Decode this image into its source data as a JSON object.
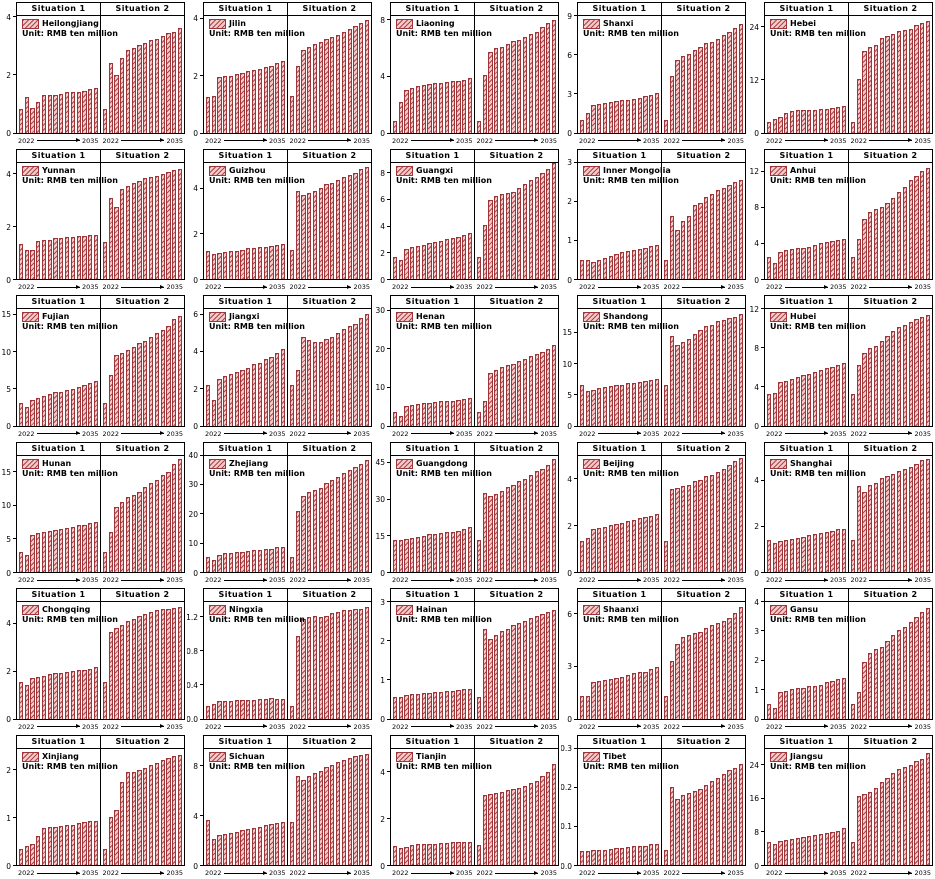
{
  "panels": [
    "Situation 1",
    "Situation 2"
  ],
  "unit_label": "Unit: RMB ten million",
  "x_axis": {
    "start": "2022",
    "end": "2035"
  },
  "colors": {
    "bar_fill": "#f5c9c9",
    "bar_hatch": "#a8484c",
    "bar_edge": "#9e3539",
    "axis": "#000000",
    "background": "#ffffff"
  },
  "chart_data": [
    {
      "type": "bar",
      "name": "Heilongjiang",
      "ylim": 4.05,
      "yticks": [
        0,
        2,
        4
      ],
      "situation1": [
        0.8,
        1.25,
        0.85,
        1.05,
        1.3,
        1.3,
        1.3,
        1.35,
        1.4,
        1.4,
        1.4,
        1.45,
        1.5,
        1.55
      ],
      "situation2": [
        0.8,
        2.4,
        2.0,
        2.6,
        2.85,
        2.95,
        3.05,
        3.1,
        3.2,
        3.25,
        3.35,
        3.45,
        3.5,
        3.65
      ]
    },
    {
      "type": "bar",
      "name": "Jilin",
      "ylim": 4.1,
      "yticks": [
        0,
        2,
        4
      ],
      "situation1": [
        1.25,
        1.3,
        1.95,
        2.0,
        2.0,
        2.05,
        2.1,
        2.15,
        2.2,
        2.25,
        2.3,
        2.35,
        2.45,
        2.5
      ],
      "situation2": [
        1.3,
        2.35,
        2.9,
        3.0,
        3.1,
        3.2,
        3.3,
        3.35,
        3.45,
        3.55,
        3.65,
        3.75,
        3.85,
        3.95
      ]
    },
    {
      "type": "bar",
      "name": "Liaoning",
      "ylim": 8.3,
      "yticks": [
        0,
        4,
        8
      ],
      "situation1": [
        0.8,
        2.2,
        3.0,
        3.2,
        3.3,
        3.4,
        3.45,
        3.5,
        3.55,
        3.6,
        3.65,
        3.7,
        3.75,
        3.85
      ],
      "situation2": [
        0.8,
        4.1,
        5.7,
        6.0,
        6.1,
        6.3,
        6.5,
        6.6,
        6.8,
        7.0,
        7.2,
        7.5,
        7.8,
        8.05
      ]
    },
    {
      "type": "bar",
      "name": "Shanxi",
      "ylim": 9.0,
      "yticks": [
        0,
        3,
        6,
        9
      ],
      "situation1": [
        1.0,
        1.5,
        2.1,
        2.2,
        2.3,
        2.35,
        2.4,
        2.5,
        2.55,
        2.6,
        2.7,
        2.8,
        2.9,
        3.05
      ],
      "situation2": [
        1.0,
        4.4,
        5.6,
        5.9,
        6.1,
        6.4,
        6.6,
        6.9,
        7.0,
        7.2,
        7.5,
        7.8,
        8.1,
        8.4
      ]
    },
    {
      "type": "bar",
      "name": "Hebei",
      "ylim": 26.5,
      "yticks": [
        0,
        12,
        24
      ],
      "situation1": [
        2.5,
        3.0,
        3.6,
        4.5,
        4.8,
        5.0,
        5.0,
        5.1,
        5.2,
        5.3,
        5.4,
        5.5,
        5.8,
        6.0
      ],
      "situation2": [
        2.5,
        12.2,
        18.5,
        19.5,
        20.0,
        21.5,
        22.0,
        22.5,
        23.0,
        23.3,
        23.5,
        24.5,
        25.0,
        25.3
      ]
    },
    {
      "type": "bar",
      "name": "Yunnan",
      "ylim": 4.45,
      "yticks": [
        0,
        2,
        4
      ],
      "situation1": [
        1.35,
        1.1,
        1.1,
        1.45,
        1.5,
        1.5,
        1.55,
        1.55,
        1.6,
        1.6,
        1.65,
        1.65,
        1.7,
        1.7
      ],
      "situation2": [
        1.4,
        3.1,
        2.75,
        3.45,
        3.55,
        3.65,
        3.75,
        3.85,
        3.9,
        3.95,
        4.0,
        4.1,
        4.15,
        4.2
      ]
    },
    {
      "type": "bar",
      "name": "Guizhou",
      "ylim": 5.15,
      "yticks": [
        0,
        2,
        4
      ],
      "situation1": [
        1.25,
        1.1,
        1.15,
        1.2,
        1.25,
        1.25,
        1.3,
        1.35,
        1.35,
        1.4,
        1.4,
        1.45,
        1.5,
        1.55
      ],
      "situation2": [
        1.3,
        3.9,
        3.7,
        3.8,
        3.9,
        4.0,
        4.2,
        4.25,
        4.4,
        4.5,
        4.6,
        4.7,
        4.85,
        4.95
      ]
    },
    {
      "type": "bar",
      "name": "Guangxi",
      "ylim": 8.8,
      "yticks": [
        0,
        2,
        4,
        6,
        8
      ],
      "situation1": [
        1.7,
        1.4,
        2.3,
        2.4,
        2.5,
        2.6,
        2.7,
        2.8,
        2.9,
        3.0,
        3.1,
        3.2,
        3.3,
        3.45
      ],
      "situation2": [
        1.7,
        4.1,
        6.0,
        6.3,
        6.4,
        6.5,
        6.6,
        6.9,
        7.2,
        7.5,
        7.7,
        8.0,
        8.3,
        8.75
      ]
    },
    {
      "type": "bar",
      "name": "Inner Mongolia",
      "ylim": 3.0,
      "yticks": [
        0,
        1,
        2,
        3
      ],
      "situation1": [
        0.5,
        0.5,
        0.45,
        0.5,
        0.55,
        0.6,
        0.65,
        0.7,
        0.72,
        0.75,
        0.78,
        0.8,
        0.85,
        0.88
      ],
      "situation2": [
        0.5,
        1.62,
        1.25,
        1.5,
        1.62,
        1.9,
        1.95,
        2.1,
        2.2,
        2.3,
        2.35,
        2.42,
        2.5,
        2.55
      ]
    },
    {
      "type": "bar",
      "name": "Anhui",
      "ylim": 13.0,
      "yticks": [
        0,
        4,
        8,
        12
      ],
      "situation1": [
        2.5,
        1.8,
        3.0,
        3.2,
        3.3,
        3.4,
        3.5,
        3.6,
        3.8,
        4.0,
        4.1,
        4.2,
        4.4,
        4.5
      ],
      "situation2": [
        2.5,
        4.5,
        6.7,
        7.5,
        7.8,
        8.0,
        8.5,
        9.0,
        9.7,
        10.3,
        11.0,
        11.5,
        12.0,
        12.4
      ]
    },
    {
      "type": "bar",
      "name": "Fujian",
      "ylim": 15.8,
      "yticks": [
        0,
        5,
        10,
        15
      ],
      "situation1": [
        3.0,
        2.5,
        3.5,
        3.7,
        4.0,
        4.3,
        4.5,
        4.6,
        4.8,
        5.0,
        5.2,
        5.5,
        5.8,
        6.1
      ],
      "situation2": [
        3.0,
        6.8,
        9.5,
        9.8,
        10.2,
        10.7,
        11.2,
        11.5,
        12.0,
        12.5,
        13.0,
        13.5,
        14.5,
        14.9
      ]
    },
    {
      "type": "bar",
      "name": "Jiangxi",
      "ylim": 6.3,
      "yticks": [
        0,
        2,
        4,
        6
      ],
      "situation1": [
        2.2,
        1.4,
        2.5,
        2.7,
        2.8,
        2.9,
        3.0,
        3.1,
        3.3,
        3.4,
        3.6,
        3.7,
        3.9,
        4.15
      ],
      "situation2": [
        2.2,
        3.0,
        4.8,
        4.6,
        4.5,
        4.5,
        4.7,
        4.8,
        5.0,
        5.2,
        5.4,
        5.5,
        5.8,
        6.05
      ]
    },
    {
      "type": "bar",
      "name": "Henan",
      "ylim": 30.5,
      "yticks": [
        0,
        10,
        20,
        30
      ],
      "situation1": [
        3.5,
        2.5,
        5.0,
        5.5,
        5.7,
        6.0,
        6.0,
        6.2,
        6.3,
        6.5,
        6.5,
        6.8,
        7.0,
        7.2
      ],
      "situation2": [
        3.5,
        6.5,
        13.8,
        14.5,
        15.2,
        15.8,
        16.2,
        16.8,
        17.5,
        18.2,
        18.8,
        19.3,
        20.0,
        21.0
      ]
    },
    {
      "type": "bar",
      "name": "Shandong",
      "ylim": 18.8,
      "yticks": [
        0,
        5,
        10,
        15
      ],
      "situation1": [
        6.5,
        5.5,
        5.7,
        6.0,
        6.2,
        6.3,
        6.5,
        6.6,
        6.8,
        6.9,
        7.0,
        7.2,
        7.3,
        7.5
      ],
      "situation2": [
        6.5,
        14.5,
        13.0,
        13.5,
        14.0,
        14.8,
        15.5,
        16.0,
        16.3,
        16.8,
        17.0,
        17.3,
        17.5,
        18.0
      ]
    },
    {
      "type": "bar",
      "name": "Hubei",
      "ylim": 12.0,
      "yticks": [
        0,
        4,
        8,
        12
      ],
      "situation1": [
        3.2,
        3.3,
        4.5,
        4.6,
        4.8,
        5.0,
        5.2,
        5.3,
        5.5,
        5.7,
        5.9,
        6.0,
        6.2,
        6.4
      ],
      "situation2": [
        3.2,
        6.2,
        7.5,
        8.0,
        8.2,
        8.7,
        9.2,
        9.7,
        10.1,
        10.4,
        10.7,
        11.0,
        11.2,
        11.4
      ]
    },
    {
      "type": "bar",
      "name": "Hunan",
      "ylim": 17.5,
      "yticks": [
        0,
        5,
        10,
        15
      ],
      "situation1": [
        3.0,
        2.5,
        5.5,
        5.8,
        6.0,
        6.1,
        6.3,
        6.4,
        6.6,
        6.8,
        7.0,
        7.1,
        7.3,
        7.5
      ],
      "situation2": [
        3.0,
        6.0,
        9.8,
        10.5,
        11.2,
        11.6,
        12.0,
        12.8,
        13.3,
        13.8,
        14.5,
        15.0,
        16.3,
        17.0
      ]
    },
    {
      "type": "bar",
      "name": "Zhejiang",
      "ylim": 40.0,
      "yticks": [
        0,
        10,
        20,
        30,
        40
      ],
      "situation1": [
        5.0,
        4.0,
        6.0,
        6.5,
        6.5,
        7.0,
        7.0,
        7.2,
        7.5,
        7.5,
        7.8,
        8.0,
        8.5,
        8.5
      ],
      "situation2": [
        5.0,
        21.0,
        26.0,
        27.5,
        28.0,
        29.0,
        30.5,
        31.5,
        32.5,
        34.0,
        35.0,
        36.0,
        37.0,
        38.5
      ]
    },
    {
      "type": "bar",
      "name": "Guangdong",
      "ylim": 48.0,
      "yticks": [
        0,
        15,
        30,
        45
      ],
      "situation1": [
        13,
        13,
        13.5,
        14,
        14.5,
        15,
        15.5,
        15.5,
        16,
        16.5,
        16.5,
        17,
        17.5,
        18.5
      ],
      "situation2": [
        13,
        32.5,
        31.5,
        32,
        33.5,
        35,
        36,
        37.5,
        38.5,
        40,
        41.5,
        42.5,
        44,
        46.5
      ]
    },
    {
      "type": "bar",
      "name": "Beijing",
      "ylim": 5.0,
      "yticks": [
        0,
        2,
        4
      ],
      "situation1": [
        1.35,
        1.45,
        1.85,
        1.9,
        1.95,
        2.0,
        2.05,
        2.1,
        2.2,
        2.25,
        2.3,
        2.35,
        2.4,
        2.5
      ],
      "situation2": [
        1.35,
        3.55,
        3.6,
        3.7,
        3.75,
        3.9,
        3.95,
        4.1,
        4.15,
        4.3,
        4.4,
        4.6,
        4.75,
        4.9
      ]
    },
    {
      "type": "bar",
      "name": "Shanghai",
      "ylim": 5.1,
      "yticks": [
        0,
        2,
        4
      ],
      "situation1": [
        1.4,
        1.25,
        1.35,
        1.4,
        1.45,
        1.5,
        1.55,
        1.6,
        1.65,
        1.7,
        1.75,
        1.8,
        1.9,
        1.9
      ],
      "situation2": [
        1.4,
        3.75,
        3.5,
        3.8,
        3.9,
        4.1,
        4.2,
        4.3,
        4.4,
        4.5,
        4.6,
        4.75,
        4.9,
        4.95
      ]
    },
    {
      "type": "bar",
      "name": "Chongqing",
      "ylim": 4.9,
      "yticks": [
        0,
        2,
        4
      ],
      "situation1": [
        1.55,
        1.4,
        1.7,
        1.75,
        1.8,
        1.85,
        1.9,
        1.9,
        1.95,
        2.0,
        2.05,
        2.05,
        2.1,
        2.15
      ],
      "situation2": [
        1.55,
        3.65,
        3.8,
        3.95,
        4.1,
        4.2,
        4.3,
        4.4,
        4.5,
        4.55,
        4.6,
        4.6,
        4.65,
        4.7
      ]
    },
    {
      "type": "bar",
      "name": "Ningxia",
      "ylim": 1.38,
      "yticks": [
        0,
        0.4,
        0.8,
        1.2
      ],
      "ytick_labels": [
        "0.0",
        "0.4",
        "0.8",
        "1.2"
      ],
      "situation1": [
        0.15,
        0.17,
        0.21,
        0.21,
        0.21,
        0.22,
        0.22,
        0.22,
        0.22,
        0.23,
        0.23,
        0.24,
        0.23,
        0.23
      ],
      "situation2": [
        0.15,
        0.98,
        1.18,
        1.2,
        1.22,
        1.2,
        1.22,
        1.25,
        1.26,
        1.28,
        1.28,
        1.3,
        1.3,
        1.32
      ]
    },
    {
      "type": "bar",
      "name": "Hainan",
      "ylim": 3.0,
      "yticks": [
        0,
        1,
        2,
        3
      ],
      "situation1": [
        0.55,
        0.55,
        0.6,
        0.62,
        0.63,
        0.65,
        0.65,
        0.68,
        0.68,
        0.7,
        0.72,
        0.73,
        0.75,
        0.75
      ],
      "situation2": [
        0.55,
        2.3,
        2.05,
        2.15,
        2.25,
        2.3,
        2.4,
        2.45,
        2.5,
        2.6,
        2.65,
        2.7,
        2.75,
        2.8
      ]
    },
    {
      "type": "bar",
      "name": "Shaanxi",
      "ylim": 6.7,
      "yticks": [
        0,
        3,
        6
      ],
      "situation1": [
        1.3,
        1.3,
        2.1,
        2.15,
        2.2,
        2.3,
        2.35,
        2.4,
        2.5,
        2.6,
        2.65,
        2.7,
        2.85,
        2.95
      ],
      "situation2": [
        1.3,
        3.3,
        4.3,
        4.7,
        4.8,
        4.9,
        5.0,
        5.2,
        5.4,
        5.5,
        5.6,
        5.8,
        6.1,
        6.4
      ]
    },
    {
      "type": "bar",
      "name": "Gansu",
      "ylim": 4.0,
      "yticks": [
        0,
        1,
        2,
        3,
        4
      ],
      "situation1": [
        0.5,
        0.35,
        0.9,
        0.95,
        1.0,
        1.05,
        1.05,
        1.1,
        1.1,
        1.15,
        1.25,
        1.3,
        1.35,
        1.4
      ],
      "situation2": [
        0.5,
        0.9,
        1.95,
        2.25,
        2.4,
        2.45,
        2.65,
        2.85,
        3.05,
        3.15,
        3.3,
        3.5,
        3.65,
        3.8
      ]
    },
    {
      "type": "bar",
      "name": "Xinjiang",
      "ylim": 2.45,
      "yticks": [
        0,
        1,
        2
      ],
      "situation1": [
        0.33,
        0.4,
        0.45,
        0.62,
        0.78,
        0.8,
        0.8,
        0.82,
        0.84,
        0.85,
        0.88,
        0.9,
        0.92,
        0.93
      ],
      "situation2": [
        0.33,
        1.0,
        1.15,
        1.75,
        1.95,
        1.95,
        2.0,
        2.05,
        2.1,
        2.15,
        2.2,
        2.25,
        2.3,
        2.32
      ]
    },
    {
      "type": "bar",
      "name": "Sichuan",
      "ylim": 9.4,
      "yticks": [
        0,
        4,
        8
      ],
      "situation1": [
        3.6,
        2.1,
        2.4,
        2.5,
        2.6,
        2.7,
        2.8,
        2.9,
        3.0,
        3.1,
        3.2,
        3.3,
        3.4,
        3.5
      ],
      "situation2": [
        3.5,
        7.2,
        6.9,
        7.2,
        7.4,
        7.6,
        7.9,
        8.1,
        8.3,
        8.5,
        8.6,
        8.8,
        8.9,
        9.0
      ]
    },
    {
      "type": "bar",
      "name": "Tianjin",
      "ylim": 5.0,
      "yticks": [
        0,
        2,
        4
      ],
      "situation1": [
        0.8,
        0.75,
        0.78,
        0.85,
        0.9,
        0.9,
        0.9,
        0.92,
        0.95,
        0.95,
        1.0,
        1.0,
        1.0,
        0.97
      ],
      "situation2": [
        0.85,
        3.0,
        3.05,
        3.1,
        3.15,
        3.2,
        3.25,
        3.3,
        3.4,
        3.5,
        3.6,
        3.8,
        4.0,
        4.35
      ]
    },
    {
      "type": "bar",
      "name": "Tibet",
      "ylim": 0.3,
      "yticks": [
        0,
        0.1,
        0.2,
        0.3
      ],
      "ytick_labels": [
        "0.0",
        "0.1",
        "0.2",
        "0.3"
      ],
      "situation1": [
        0.035,
        0.037,
        0.038,
        0.038,
        0.04,
        0.042,
        0.045,
        0.045,
        0.047,
        0.048,
        0.05,
        0.05,
        0.053,
        0.055
      ],
      "situation2": [
        0.038,
        0.2,
        0.17,
        0.18,
        0.185,
        0.19,
        0.195,
        0.205,
        0.215,
        0.225,
        0.235,
        0.245,
        0.25,
        0.26
      ]
    },
    {
      "type": "bar",
      "name": "Jiangsu",
      "ylim": 28.0,
      "yticks": [
        0,
        8,
        16,
        24
      ],
      "situation1": [
        5.5,
        5.0,
        5.8,
        6.0,
        6.3,
        6.5,
        6.8,
        7.0,
        7.3,
        7.5,
        7.8,
        8.0,
        8.2,
        9.0
      ],
      "situation2": [
        5.5,
        16.5,
        17.0,
        17.5,
        18.5,
        20.0,
        21.0,
        22.0,
        23.0,
        23.5,
        24.0,
        25.0,
        25.5,
        27.0
      ]
    }
  ]
}
